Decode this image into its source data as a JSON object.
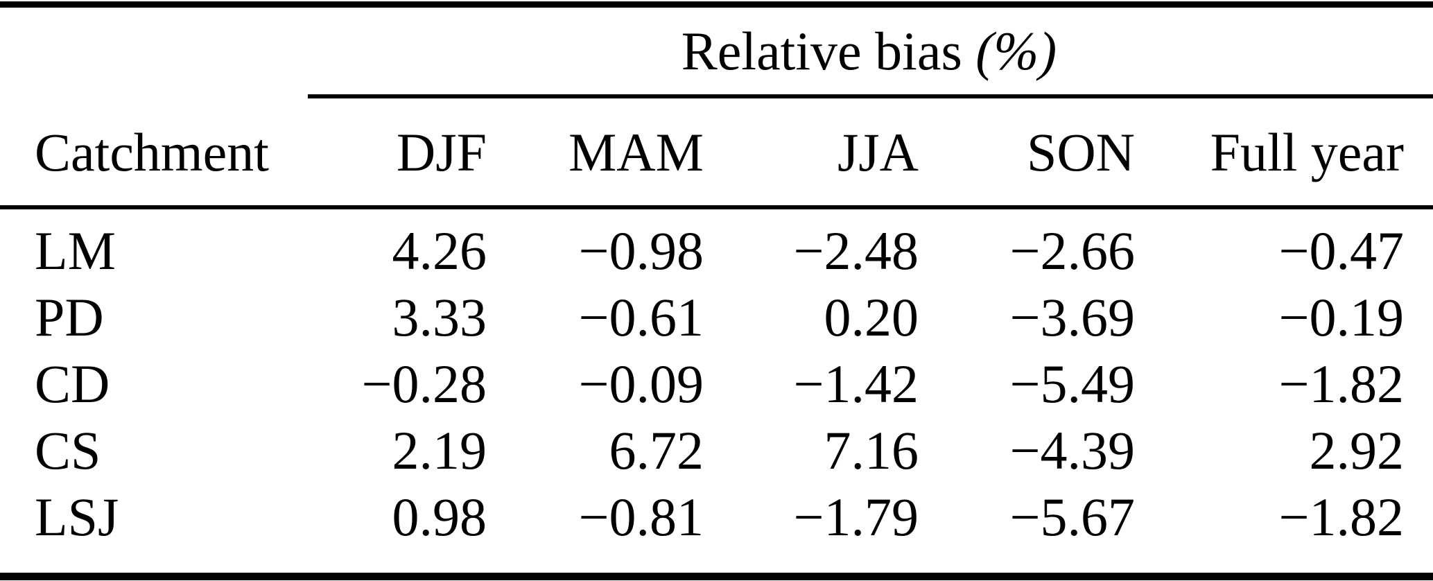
{
  "page": {
    "background_color": "#ffffff",
    "text_color": "#000000"
  },
  "table": {
    "group_header_text": "Relative bias",
    "group_header_unit": "(%)",
    "corner_header": "Catchment",
    "season_columns": [
      "DJF",
      "MAM",
      "JJA",
      "SON",
      "Full year"
    ],
    "rows": [
      {
        "catchment": "LM",
        "values": [
          "4.26",
          "−0.98",
          "−2.48",
          "−2.66",
          "−0.47"
        ]
      },
      {
        "catchment": "PD",
        "values": [
          "3.33",
          "−0.61",
          "0.20",
          "−3.69",
          "−0.19"
        ]
      },
      {
        "catchment": "CD",
        "values": [
          "−0.28",
          "−0.09",
          "−1.42",
          "−5.49",
          "−1.82"
        ]
      },
      {
        "catchment": "CS",
        "values": [
          "2.19",
          "6.72",
          "7.16",
          "−4.39",
          "2.92"
        ]
      },
      {
        "catchment": "LSJ",
        "values": [
          "0.98",
          "−0.81",
          "−1.79",
          "−5.67",
          "−1.82"
        ]
      }
    ]
  },
  "chart_data": {
    "type": "table",
    "title": "Relative bias (%)",
    "row_label": "Catchment",
    "columns": [
      "DJF",
      "MAM",
      "JJA",
      "SON",
      "Full year"
    ],
    "rows": [
      {
        "catchment": "LM",
        "DJF": 4.26,
        "MAM": -0.98,
        "JJA": -2.48,
        "SON": -2.66,
        "full_year": -0.47
      },
      {
        "catchment": "PD",
        "DJF": 3.33,
        "MAM": -0.61,
        "JJA": 0.2,
        "SON": -3.69,
        "full_year": -0.19
      },
      {
        "catchment": "CD",
        "DJF": -0.28,
        "MAM": -0.09,
        "JJA": -1.42,
        "SON": -5.49,
        "full_year": -1.82
      },
      {
        "catchment": "CS",
        "DJF": 2.19,
        "MAM": 6.72,
        "JJA": 7.16,
        "SON": -4.39,
        "full_year": 2.92
      },
      {
        "catchment": "LSJ",
        "DJF": 0.98,
        "MAM": -0.81,
        "JJA": -1.79,
        "SON": -5.67,
        "full_year": -1.82
      }
    ]
  }
}
